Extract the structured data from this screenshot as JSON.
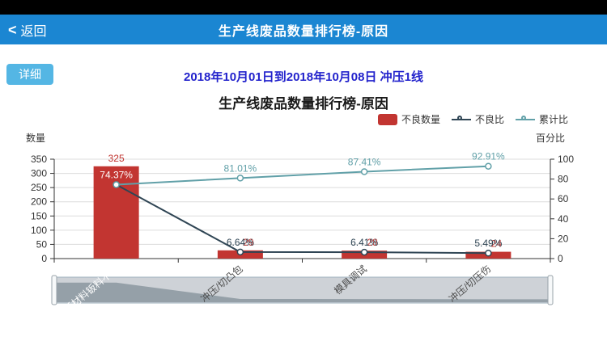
{
  "status_bar": {
    "background": "#000000"
  },
  "header": {
    "back_chevron": "<",
    "back_label": "返回",
    "title": "生产线废品数量排行榜-原因",
    "background": "#1b86d2",
    "text_color": "#ffffff"
  },
  "controls": {
    "detail_button_label": "详细",
    "detail_button_color": "#54b6e4",
    "subtitle": "2018年10月01日到2018年10月08日 冲压1线",
    "subtitle_color": "#2222cc"
  },
  "chart_data": {
    "type": "pareto-bar-line",
    "title": "生产线废品数量排行榜-原因",
    "categories": [
      "原材料钣料不良",
      "冲压/切凸包",
      "模具调试",
      "冲压/切压伤"
    ],
    "series": [
      {
        "name": "不良数量",
        "type": "bar",
        "axis": "left",
        "color": "#c23531",
        "values": [
          325,
          29,
          28,
          24
        ],
        "labels": [
          "325",
          "29",
          "28",
          "24"
        ]
      },
      {
        "name": "不良比",
        "type": "line",
        "axis": "right",
        "color": "#2f4554",
        "values": [
          74.37,
          6.64,
          6.41,
          5.49
        ],
        "labels": [
          "74.37%",
          "6.64%",
          "6.41%",
          "5.49%"
        ]
      },
      {
        "name": "累计比",
        "type": "line",
        "axis": "right",
        "color": "#61a0a8",
        "values": [
          74.37,
          81.01,
          87.41,
          92.91
        ],
        "labels": [
          "74.37%",
          "81.01%",
          "87.41%",
          "92.91%"
        ]
      }
    ],
    "y_left": {
      "name": "数量",
      "min": 0,
      "max": 350,
      "step": 50,
      "ticks": [
        0,
        50,
        100,
        150,
        200,
        250,
        300,
        350
      ]
    },
    "y_right": {
      "name": "百分比",
      "min": 0,
      "max": 100,
      "step": 20,
      "ticks": [
        0,
        20,
        40,
        60,
        80,
        100
      ]
    },
    "legend_position": "top-right",
    "grid": true,
    "x_label_colors": [
      "#ffffff",
      "#4d4d4d",
      "#4d4d4d",
      "#4d4d4d"
    ],
    "datazoom": {
      "present": true,
      "range_percent": [
        0,
        100
      ]
    }
  }
}
